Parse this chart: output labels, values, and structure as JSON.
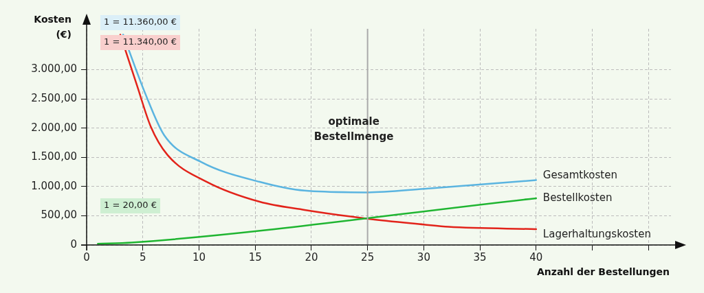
{
  "chart_data": {
    "type": "line",
    "ylabel": "Kosten (€)",
    "xlabel": "Anzahl der Bestellungen",
    "xlim": [
      0,
      52
    ],
    "xticks": [
      0,
      5,
      10,
      15,
      20,
      25,
      30,
      35,
      40,
      {
        "value": 45,
        "label": null
      },
      {
        "value": 50,
        "label": null
      }
    ],
    "ylim": [
      0,
      3700
    ],
    "yticks": [
      {
        "value": 0,
        "label": "0"
      },
      {
        "value": 500,
        "label": "500,00"
      },
      {
        "value": 1000,
        "label": "1.000,00"
      },
      {
        "value": 1500,
        "label": "1.500,00"
      },
      {
        "value": 2000,
        "label": "2.000,00"
      },
      {
        "value": 2500,
        "label": "2.500,00"
      },
      {
        "value": 3000,
        "label": "3.000,00"
      }
    ],
    "grid": true,
    "legend": false,
    "marker": "none",
    "line_style": "solid",
    "series": [
      {
        "name": "Gesamtkosten",
        "color": "#5ab4e0",
        "x": [
          3.25,
          5.2,
          6.9,
          10.2,
          15.4,
          19.4,
          25,
          30,
          40
        ],
        "values": [
          3600,
          2600,
          1880,
          1420,
          1080,
          930,
          900,
          960,
          1110
        ]
      },
      {
        "name": "Bestellkosten",
        "color": "#1fb531",
        "x": [
          1,
          4,
          40
        ],
        "values": [
          20,
          40,
          800
        ]
      },
      {
        "name": "Lagerhaltungskosten",
        "color": "#e2231a",
        "x": [
          3,
          4.5,
          5.7,
          7.2,
          10.7,
          15.4,
          19.4,
          25,
          30,
          32.2,
          40
        ],
        "values": [
          3600,
          2720,
          2030,
          1540,
          1080,
          740,
          600,
          450,
          350,
          310,
          270
        ]
      }
    ],
    "ref_lines": [
      {
        "axis": "x",
        "value": 25,
        "label": "optimale Bestellmenge",
        "color": "#aaaaaa"
      }
    ],
    "annotations": [
      "1 = 11.360,00 €",
      "1 = 11.340,00 €",
      "1 = 20,00 €"
    ]
  }
}
